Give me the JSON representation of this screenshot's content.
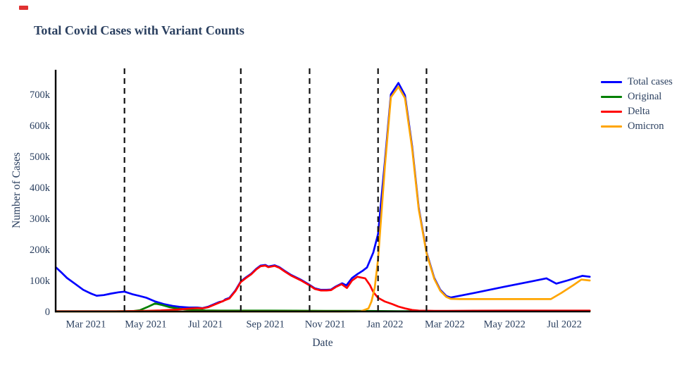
{
  "style": {
    "text_color": "#2a3f5f",
    "axis_color": "#000000",
    "background": "#ffffff",
    "artifact_color": "#e03131"
  },
  "chart_data": {
    "type": "line",
    "title": "Total Covid Cases with Variant Counts",
    "xlabel": "Date",
    "ylabel": "Number of Cases",
    "value_unit": "thousands of cases",
    "x_unit": "months since 2021-02-01 (0 = Feb 1 2021)",
    "ylim_thousands": [
      0,
      760
    ],
    "grid": false,
    "legend_position": "right",
    "x_ticks": {
      "positions_months": [
        1,
        3,
        5,
        7,
        9,
        11,
        13,
        15,
        17
      ],
      "labels": [
        "Mar 2021",
        "May 2021",
        "Jul 2021",
        "Sep 2021",
        "Nov 2021",
        "Jan 2022",
        "Mar 2022",
        "May 2022",
        "Jul 2022"
      ]
    },
    "y_ticks": {
      "values_thousands": [
        0,
        100,
        200,
        300,
        400,
        500,
        600,
        700
      ],
      "labels": [
        "0",
        "100k",
        "200k",
        "300k",
        "400k",
        "500k",
        "600k",
        "700k"
      ]
    },
    "vlines": {
      "style": "dashed",
      "color": "#111111",
      "positions_months": [
        2.29,
        6.18,
        8.48,
        10.77,
        12.39
      ],
      "approx_dates": [
        "2021-04-10",
        "2021-08-06",
        "2021-10-15",
        "2021-12-24",
        "2022-02-13"
      ]
    },
    "series": [
      {
        "name": "Total cases",
        "color": "#0000ff",
        "points_month_thousands": [
          [
            0,
            142
          ],
          [
            0.2,
            124
          ],
          [
            0.37,
            108
          ],
          [
            0.64,
            89
          ],
          [
            0.91,
            70
          ],
          [
            1.19,
            57
          ],
          [
            1.36,
            51
          ],
          [
            1.6,
            53
          ],
          [
            1.85,
            58
          ],
          [
            2.1,
            62
          ],
          [
            2.29,
            64
          ],
          [
            2.55,
            56
          ],
          [
            2.8,
            50
          ],
          [
            3.03,
            44
          ],
          [
            3.3,
            33
          ],
          [
            3.6,
            24
          ],
          [
            3.9,
            18
          ],
          [
            4.13,
            15
          ],
          [
            4.45,
            13
          ],
          [
            4.72,
            13
          ],
          [
            4.9,
            11
          ],
          [
            5.1,
            16
          ],
          [
            5.3,
            24
          ],
          [
            5.47,
            31
          ],
          [
            5.58,
            33
          ],
          [
            5.66,
            39
          ],
          [
            5.8,
            44
          ],
          [
            6.0,
            68
          ],
          [
            6.18,
            97
          ],
          [
            6.35,
            110
          ],
          [
            6.53,
            122
          ],
          [
            6.7,
            138
          ],
          [
            6.84,
            148
          ],
          [
            7.0,
            150
          ],
          [
            7.1,
            145
          ],
          [
            7.31,
            149
          ],
          [
            7.47,
            143
          ],
          [
            7.65,
            131
          ],
          [
            7.86,
            118
          ],
          [
            8.18,
            103
          ],
          [
            8.48,
            86
          ],
          [
            8.65,
            75
          ],
          [
            8.85,
            70
          ],
          [
            9.05,
            70
          ],
          [
            9.2,
            71
          ],
          [
            9.36,
            81
          ],
          [
            9.57,
            91
          ],
          [
            9.71,
            84
          ],
          [
            9.9,
            108
          ],
          [
            10.07,
            120
          ],
          [
            10.25,
            131
          ],
          [
            10.4,
            142
          ],
          [
            10.61,
            190
          ],
          [
            10.77,
            250
          ],
          [
            11.0,
            487
          ],
          [
            11.2,
            700
          ],
          [
            11.45,
            737
          ],
          [
            11.67,
            697
          ],
          [
            11.91,
            532
          ],
          [
            12.13,
            335
          ],
          [
            12.39,
            191
          ],
          [
            12.65,
            108
          ],
          [
            12.85,
            70
          ],
          [
            13.05,
            50
          ],
          [
            13.2,
            45
          ],
          [
            14,
            60
          ],
          [
            15,
            80
          ],
          [
            16,
            99
          ],
          [
            16.4,
            107
          ],
          [
            16.73,
            90
          ],
          [
            17.1,
            100
          ],
          [
            17.6,
            115
          ],
          [
            17.85,
            112
          ]
        ]
      },
      {
        "name": "Original",
        "color": "#008000",
        "points_month_thousands": [
          [
            0,
            0.5
          ],
          [
            1,
            0.5
          ],
          [
            2,
            0.5
          ],
          [
            2.55,
            1
          ],
          [
            2.8,
            4
          ],
          [
            3.05,
            14
          ],
          [
            3.31,
            26
          ],
          [
            3.55,
            21
          ],
          [
            3.8,
            14
          ],
          [
            4.05,
            10
          ],
          [
            4.3,
            7
          ],
          [
            4.6,
            5
          ],
          [
            5,
            3.5
          ],
          [
            5.5,
            3
          ],
          [
            6,
            3
          ],
          [
            7,
            3
          ],
          [
            8,
            2.5
          ],
          [
            9,
            2
          ],
          [
            10,
            2
          ],
          [
            10.77,
            1.5
          ],
          [
            11.45,
            1
          ],
          [
            12.39,
            1
          ],
          [
            13.2,
            1
          ],
          [
            15,
            1
          ],
          [
            17,
            1
          ],
          [
            17.85,
            1
          ]
        ]
      },
      {
        "name": "Delta",
        "color": "#ff0000",
        "points_month_thousands": [
          [
            0,
            1
          ],
          [
            0.5,
            1
          ],
          [
            1,
            1
          ],
          [
            1.5,
            1
          ],
          [
            2,
            1
          ],
          [
            2.5,
            1.5
          ],
          [
            3,
            2
          ],
          [
            3.5,
            3.5
          ],
          [
            4,
            6
          ],
          [
            4.4,
            9
          ],
          [
            4.72,
            11
          ],
          [
            4.9,
            10
          ],
          [
            5.1,
            14
          ],
          [
            5.3,
            22
          ],
          [
            5.47,
            29
          ],
          [
            5.66,
            37
          ],
          [
            5.8,
            42
          ],
          [
            6.0,
            66
          ],
          [
            6.18,
            95
          ],
          [
            6.35,
            108
          ],
          [
            6.53,
            120
          ],
          [
            6.7,
            136
          ],
          [
            6.84,
            146
          ],
          [
            7.0,
            148
          ],
          [
            7.1,
            143
          ],
          [
            7.31,
            147
          ],
          [
            7.47,
            141
          ],
          [
            7.65,
            129
          ],
          [
            7.86,
            116
          ],
          [
            8.18,
            101
          ],
          [
            8.48,
            84
          ],
          [
            8.65,
            73
          ],
          [
            8.85,
            68
          ],
          [
            9.05,
            68
          ],
          [
            9.2,
            69
          ],
          [
            9.36,
            79
          ],
          [
            9.55,
            88
          ],
          [
            9.73,
            76
          ],
          [
            9.9,
            100
          ],
          [
            10.08,
            112
          ],
          [
            10.34,
            107
          ],
          [
            10.5,
            85
          ],
          [
            10.61,
            63
          ],
          [
            10.77,
            44
          ],
          [
            11.0,
            32
          ],
          [
            11.24,
            24
          ],
          [
            11.45,
            16
          ],
          [
            11.67,
            10
          ],
          [
            11.91,
            5
          ],
          [
            12.13,
            3
          ],
          [
            12.39,
            2.5
          ],
          [
            12.65,
            2
          ],
          [
            13,
            2
          ],
          [
            14,
            2.5
          ],
          [
            15,
            3
          ],
          [
            16,
            3
          ],
          [
            17,
            3
          ],
          [
            17.85,
            3
          ]
        ]
      },
      {
        "name": "Omicron",
        "color": "#ffa500",
        "points_month_thousands": [
          [
            0,
            0
          ],
          [
            2,
            0
          ],
          [
            4,
            0
          ],
          [
            6,
            0
          ],
          [
            8,
            0
          ],
          [
            9,
            0
          ],
          [
            9.5,
            0
          ],
          [
            10,
            0.5
          ],
          [
            10.2,
            1
          ],
          [
            10.45,
            10
          ],
          [
            10.55,
            32
          ],
          [
            10.66,
            77
          ],
          [
            10.77,
            169
          ],
          [
            11.0,
            471
          ],
          [
            11.2,
            691
          ],
          [
            11.45,
            725
          ],
          [
            11.67,
            688
          ],
          [
            11.91,
            525
          ],
          [
            12.13,
            330
          ],
          [
            12.39,
            188
          ],
          [
            12.65,
            105
          ],
          [
            12.85,
            67
          ],
          [
            13.05,
            47
          ],
          [
            13.2,
            41
          ],
          [
            13.5,
            40
          ],
          [
            14,
            40
          ],
          [
            15,
            40
          ],
          [
            16,
            40
          ],
          [
            16.55,
            40
          ],
          [
            16.9,
            60
          ],
          [
            17.3,
            85
          ],
          [
            17.57,
            103
          ],
          [
            17.85,
            100
          ]
        ]
      }
    ]
  }
}
